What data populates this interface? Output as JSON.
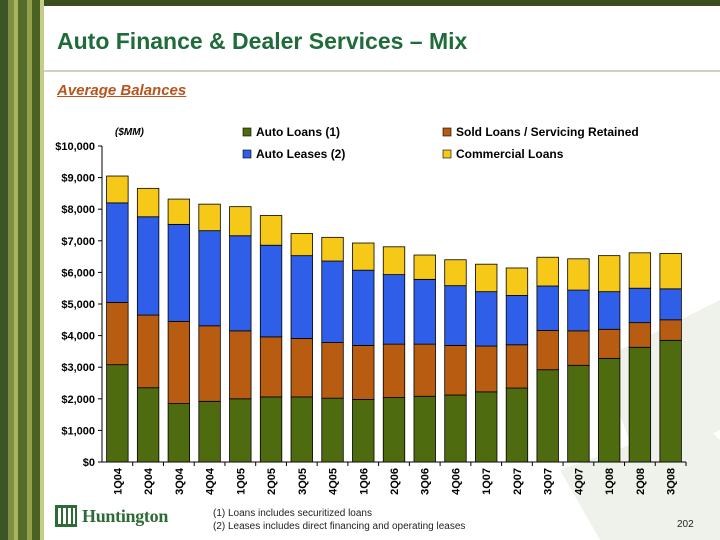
{
  "page": {
    "title": "Auto Finance  & Dealer Services – Mix",
    "subtitle": "Average Balances",
    "page_number": "202",
    "brand": "Huntington"
  },
  "footnotes": [
    "(1)  Loans includes securitized loans",
    "(2)  Leases includes direct financing and operating leases"
  ],
  "colors": {
    "title": "#1f6b3a",
    "subtitle": "#b8541c",
    "auto_loans": "#4f6b10",
    "sold_loans": "#b85c12",
    "auto_leases": "#2f5fe8",
    "commercial": "#f6c818"
  },
  "chart_data": {
    "type": "bar",
    "stacked": true,
    "unit_label": "($MM)",
    "categories": [
      "1Q04",
      "2Q04",
      "3Q04",
      "4Q04",
      "1Q05",
      "2Q05",
      "3Q05",
      "4Q05",
      "1Q06",
      "2Q06",
      "3Q06",
      "4Q06",
      "1Q07",
      "2Q07",
      "3Q07",
      "4Q07",
      "1Q08",
      "2Q08",
      "3Q08"
    ],
    "ylim": [
      0,
      10000
    ],
    "yticks": [
      "$0",
      "$1,000",
      "$2,000",
      "$3,000",
      "$4,000",
      "$5,000",
      "$6,000",
      "$7,000",
      "$8,000",
      "$9,000",
      "$10,000"
    ],
    "grid": false,
    "legend_position": "top",
    "series": [
      {
        "name": "Auto Loans (1)",
        "color": "#4f6b10",
        "values": [
          3080,
          2350,
          1850,
          1920,
          2000,
          2060,
          2060,
          2020,
          1980,
          2040,
          2080,
          2120,
          2220,
          2340,
          2920,
          3060,
          3280,
          3630,
          3850
        ]
      },
      {
        "name": "Sold Loans / Servicing Retained",
        "color": "#b85c12",
        "values": [
          1970,
          2300,
          2600,
          2390,
          2150,
          1900,
          1850,
          1760,
          1710,
          1690,
          1650,
          1570,
          1450,
          1370,
          1240,
          1090,
          920,
          780,
          650
        ]
      },
      {
        "name": "Auto Leases (2)",
        "color": "#2f5fe8",
        "values": [
          3150,
          3110,
          3070,
          3010,
          3010,
          2900,
          2620,
          2580,
          2380,
          2200,
          2050,
          1890,
          1720,
          1560,
          1410,
          1290,
          1190,
          1090,
          980
        ]
      },
      {
        "name": "Commercial Loans",
        "color": "#f6c818",
        "values": [
          850,
          900,
          800,
          840,
          920,
          940,
          700,
          750,
          860,
          880,
          770,
          820,
          870,
          870,
          910,
          990,
          1140,
          1120,
          1120
        ]
      }
    ]
  }
}
